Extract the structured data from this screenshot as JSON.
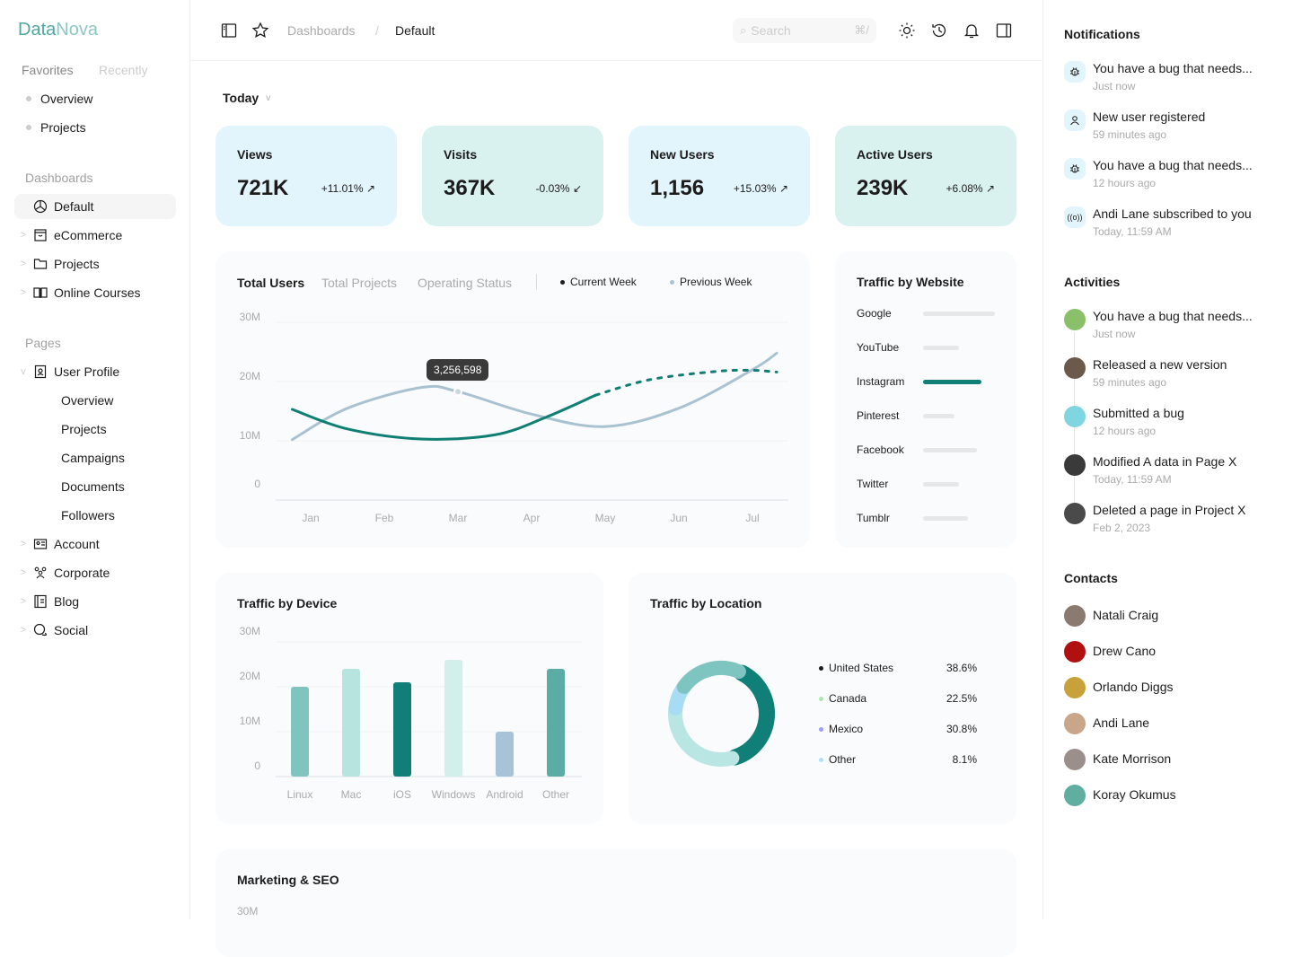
{
  "brand": {
    "part1": "Data",
    "part2": "Nova"
  },
  "sidebar": {
    "tabs": [
      "Favorites",
      "Recently"
    ],
    "favorites": [
      "Overview",
      "Projects"
    ],
    "dashboards_label": "Dashboards",
    "dashboards": [
      {
        "label": "Default",
        "icon": "pie-chart-icon"
      },
      {
        "label": "eCommerce",
        "icon": "shopping-bag-icon"
      },
      {
        "label": "Projects",
        "icon": "folder-icon"
      },
      {
        "label": "Online Courses",
        "icon": "book-open-icon"
      }
    ],
    "pages_label": "Pages",
    "user_profile": {
      "label": "User Profile",
      "children": [
        "Overview",
        "Projects",
        "Campaigns",
        "Documents",
        "Followers"
      ]
    },
    "pages": [
      {
        "label": "Account",
        "icon": "id-card-icon"
      },
      {
        "label": "Corporate",
        "icon": "users-icon"
      },
      {
        "label": "Blog",
        "icon": "notebook-icon"
      },
      {
        "label": "Social",
        "icon": "chat-icon"
      }
    ]
  },
  "header": {
    "breadcrumb": [
      "Dashboards",
      "Default"
    ],
    "separator": "/",
    "search_placeholder": "Search",
    "search_shortcut": "⌘/"
  },
  "filter": {
    "label": "Today"
  },
  "stats": [
    {
      "title": "Views",
      "value": "721K",
      "change": "+11.01%",
      "trend": "up",
      "bg": "#e3f5fc"
    },
    {
      "title": "Visits",
      "value": "367K",
      "change": "-0.03%",
      "trend": "down",
      "bg": "#d9f1ef"
    },
    {
      "title": "New Users",
      "value": "1,156",
      "change": "+15.03%",
      "trend": "up",
      "bg": "#e3f5fc"
    },
    {
      "title": "Active Users",
      "value": "239K",
      "change": "+6.08%",
      "trend": "up",
      "bg": "#d9f1ef"
    }
  ],
  "chart_data": [
    {
      "type": "line",
      "tabs": [
        "Total Users",
        "Total Projects",
        "Operating Status"
      ],
      "categories": [
        "Jan",
        "Feb",
        "Mar",
        "Apr",
        "May",
        "Jun",
        "Jul"
      ],
      "yticks": [
        "0",
        "10M",
        "20M",
        "30M"
      ],
      "ylim": [
        0,
        30
      ],
      "unit": "M",
      "tooltip": "3,256,598",
      "series": [
        {
          "name": "Current Week",
          "color": "#0f7f73",
          "points": [
            [
              -0.25,
              15.3
            ],
            [
              0.5,
              12
            ],
            [
              1.5,
              10.3
            ],
            [
              2.5,
              11
            ],
            [
              3.2,
              14
            ],
            [
              3.87,
              17.7
            ]
          ],
          "projected": [
            [
              3.87,
              17.7
            ],
            [
              4.6,
              20.3
            ],
            [
              5.5,
              21.7
            ],
            [
              6.0,
              21.9
            ],
            [
              6.33,
              21.6
            ]
          ]
        },
        {
          "name": "Previous Week",
          "color": "#a9c2d1",
          "points": [
            [
              -0.25,
              10.2
            ],
            [
              0.5,
              15.5
            ],
            [
              1.5,
              19
            ],
            [
              2,
              18.3
            ],
            [
              3,
              14.5
            ],
            [
              4,
              12.4
            ],
            [
              5,
              15.5
            ],
            [
              6,
              22
            ],
            [
              6.33,
              24.8
            ]
          ]
        }
      ],
      "grid": true,
      "legend": "top"
    },
    {
      "type": "bar",
      "title": "Traffic by Device",
      "categories": [
        "Linux",
        "Mac",
        "iOS",
        "Windows",
        "Android",
        "Other"
      ],
      "values": [
        20,
        24,
        21,
        26,
        10,
        24
      ],
      "colors": [
        "#7fc4bf",
        "#b8e4df",
        "#0f7f78",
        "#d3efec",
        "#a7c3d8",
        "#5aaca5"
      ],
      "yticks": [
        "0",
        "10M",
        "20M",
        "30M"
      ],
      "ylim": [
        0,
        30
      ]
    },
    {
      "type": "pie",
      "title": "Traffic by Location",
      "labels": [
        "United States",
        "Canada",
        "Mexico",
        "Other"
      ],
      "values": [
        38.6,
        22.5,
        30.8,
        8.1
      ],
      "display": [
        "38.6%",
        "22.5%",
        "30.8%",
        "8.1%"
      ],
      "legend_colors": [
        "#1c1c1c",
        "#a8e6b0",
        "#9f9ff8",
        "#b0e0f5"
      ],
      "slice_colors": [
        "#0f7f78",
        "#7ec4c0",
        "#b9e5e3",
        "#a8dcf5"
      ]
    },
    {
      "type": "bar",
      "title": "Traffic by Website",
      "categories": [
        "Google",
        "YouTube",
        "Instagram",
        "Pinterest",
        "Facebook",
        "Twitter",
        "Tumblr"
      ],
      "values": [
        1.0,
        0.5,
        0.81,
        0.44,
        0.75,
        0.5,
        0.62
      ],
      "highlight": "Instagram"
    }
  ],
  "marketing": {
    "title": "Marketing & SEO",
    "ytick": "30M"
  },
  "right": {
    "notifications_title": "Notifications",
    "notifications": [
      {
        "text": "You have a bug that needs...",
        "time": "Just now",
        "icon": "bug-icon"
      },
      {
        "text": "New user registered",
        "time": "59 minutes ago",
        "icon": "user-icon"
      },
      {
        "text": "You have a bug that needs...",
        "time": "12 hours ago",
        "icon": "bug-icon"
      },
      {
        "text": "Andi Lane subscribed to you",
        "time": "Today, 11:59 AM",
        "icon": "broadcast-icon"
      }
    ],
    "activities_title": "Activities",
    "activities": [
      {
        "text": "You have a bug that needs...",
        "time": "Just now",
        "color": "#8bc06a"
      },
      {
        "text": "Released a new version",
        "time": "59 minutes ago",
        "color": "#6b5a4c"
      },
      {
        "text": "Submitted a bug",
        "time": "12 hours ago",
        "color": "#7fd6e0"
      },
      {
        "text": "Modified A data in Page X",
        "time": "Today, 11:59 AM",
        "color": "#3a3a3a"
      },
      {
        "text": "Deleted a page in Project X",
        "time": "Feb 2, 2023",
        "color": "#4a4a4a"
      }
    ],
    "contacts_title": "Contacts",
    "contacts": [
      {
        "name": "Natali Craig",
        "color": "#8a7a70"
      },
      {
        "name": "Drew Cano",
        "color": "#b01010"
      },
      {
        "name": "Orlando Diggs",
        "color": "#c9a13a"
      },
      {
        "name": "Andi Lane",
        "color": "#c9a58a"
      },
      {
        "name": "Kate Morrison",
        "color": "#9a8f8a"
      },
      {
        "name": "Koray Okumus",
        "color": "#5fae9f"
      }
    ]
  }
}
